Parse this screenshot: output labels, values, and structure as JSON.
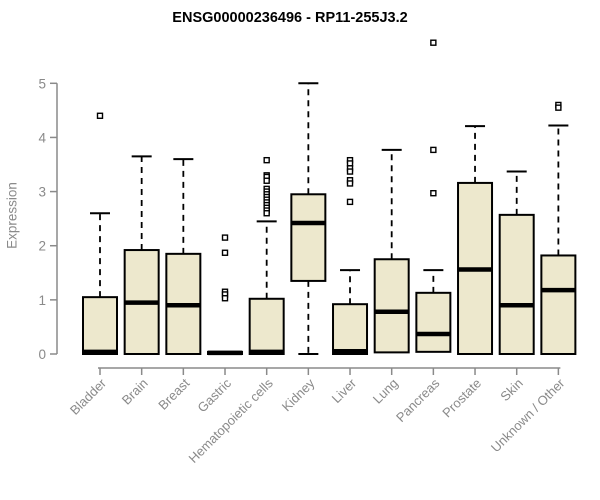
{
  "title": "ENSG00000236496 - RP11-255J3.2",
  "chart_data": {
    "type": "boxplot",
    "title": "ENSG00000236496 - RP11-255J3.2",
    "xlabel": "",
    "ylabel": "Expression",
    "ylim": [
      0,
      5
    ],
    "yticks": [
      0,
      1,
      2,
      3,
      4,
      5
    ],
    "grid": false,
    "legend": "none",
    "categories": [
      "Bladder",
      "Brain",
      "Breast",
      "Gastric",
      "Hematopoietic cells",
      "Kidney",
      "Liver",
      "Lung",
      "Pancreas",
      "Prostate",
      "Skin",
      "Unknown / Other"
    ],
    "boxes": [
      {
        "category": "Bladder",
        "whisker_low": 0,
        "q1": 0,
        "median": 0.04,
        "q3": 1.05,
        "whisker_high": 2.6,
        "outliers": [
          4.4
        ]
      },
      {
        "category": "Brain",
        "whisker_low": 0,
        "q1": 0,
        "median": 0.95,
        "q3": 1.92,
        "whisker_high": 3.65,
        "outliers": []
      },
      {
        "category": "Breast",
        "whisker_low": 0,
        "q1": 0,
        "median": 0.9,
        "q3": 1.85,
        "whisker_high": 3.6,
        "outliers": []
      },
      {
        "category": "Gastric",
        "whisker_low": 0,
        "q1": 0,
        "median": 0.02,
        "q3": 0.04,
        "whisker_high": 0.04,
        "outliers": [
          2.15,
          1.87,
          1.15,
          1.1,
          1.03
        ]
      },
      {
        "category": "Hematopoietic cells",
        "whisker_low": 0,
        "q1": 0,
        "median": 0.04,
        "q3": 1.02,
        "whisker_high": 2.45,
        "outliers": [
          3.58,
          3.3,
          3.27,
          3.2,
          3.05,
          3.0,
          2.95,
          2.9,
          2.85,
          2.8,
          2.75,
          2.7,
          2.65,
          2.6
        ]
      },
      {
        "category": "Kidney",
        "whisker_low": 0,
        "q1": 1.35,
        "median": 2.42,
        "q3": 2.95,
        "whisker_high": 5.0,
        "outliers": []
      },
      {
        "category": "Liver",
        "whisker_low": 0,
        "q1": 0,
        "median": 0.05,
        "q3": 0.92,
        "whisker_high": 1.55,
        "outliers": [
          3.58,
          3.52,
          3.43,
          3.37,
          3.21,
          3.15,
          2.81
        ]
      },
      {
        "category": "Lung",
        "whisker_low": 0.03,
        "q1": 0.03,
        "median": 0.78,
        "q3": 1.75,
        "whisker_high": 3.77,
        "outliers": []
      },
      {
        "category": "Pancreas",
        "whisker_low": 0.04,
        "q1": 0.04,
        "median": 0.37,
        "q3": 1.13,
        "whisker_high": 1.55,
        "outliers": [
          5.75,
          3.77,
          2.97
        ]
      },
      {
        "category": "Prostate",
        "whisker_low": 0,
        "q1": 0,
        "median": 1.56,
        "q3": 3.16,
        "whisker_high": 4.21,
        "outliers": []
      },
      {
        "category": "Skin",
        "whisker_low": 0,
        "q1": 0,
        "median": 0.9,
        "q3": 2.57,
        "whisker_high": 3.37,
        "outliers": []
      },
      {
        "category": "Unknown / Other",
        "whisker_low": 0,
        "q1": 0,
        "median": 1.18,
        "q3": 1.82,
        "whisker_high": 4.22,
        "outliers": [
          4.6,
          4.55
        ]
      }
    ],
    "colors": {
      "box_fill": "#ede8cd",
      "box_border": "#000000",
      "median": "#000000",
      "whisker": "#000000",
      "outlier_stroke": "#000000",
      "outlier_fill": "#ffffff",
      "axis": "#8a8a8a",
      "tick_label": "#8a8a8a",
      "title": "#000000"
    }
  }
}
